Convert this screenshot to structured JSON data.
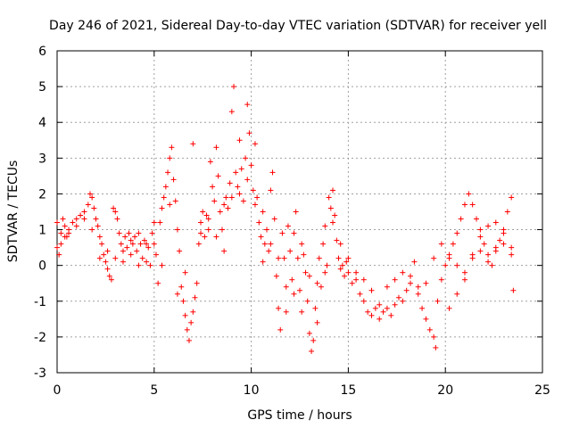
{
  "chart_data": {
    "type": "scatter",
    "title": "Day 246 of 2021, Sidereal Day-to-day VTEC variation (SDTVAR) for receiver yell",
    "xlabel": "GPS time / hours",
    "ylabel": "SDTVAR / TECUs",
    "xlim": [
      0,
      25
    ],
    "ylim": [
      -3,
      6
    ],
    "xticks": [
      "0",
      "5",
      "10",
      "15",
      "20",
      "25"
    ],
    "yticks": [
      "-3",
      "-2",
      "-1",
      "0",
      "1",
      "2",
      "3",
      "4",
      "5",
      "6"
    ],
    "grid": true,
    "marker": "+",
    "marker_color": "#ff0000",
    "series": [
      {
        "name": "SDTVAR",
        "points": [
          [
            0.0,
            1.2
          ],
          [
            0.1,
            0.3
          ],
          [
            0.2,
            0.9
          ],
          [
            0.3,
            1.3
          ],
          [
            0.4,
            1.1
          ],
          [
            0.5,
            0.8
          ],
          [
            0.6,
            1.0
          ],
          [
            0.8,
            1.2
          ],
          [
            1.0,
            1.3
          ],
          [
            1.2,
            1.4
          ],
          [
            1.4,
            1.5
          ],
          [
            1.6,
            1.7
          ],
          [
            1.7,
            2.0
          ],
          [
            1.8,
            1.9
          ],
          [
            1.9,
            1.6
          ],
          [
            2.0,
            1.3
          ],
          [
            2.1,
            1.1
          ],
          [
            2.2,
            0.8
          ],
          [
            2.3,
            0.6
          ],
          [
            2.4,
            0.3
          ],
          [
            2.5,
            0.1
          ],
          [
            2.6,
            -0.1
          ],
          [
            2.7,
            -0.3
          ],
          [
            2.8,
            -0.4
          ],
          [
            2.9,
            1.6
          ],
          [
            3.0,
            1.5
          ],
          [
            3.1,
            1.3
          ],
          [
            3.2,
            0.9
          ],
          [
            3.3,
            0.6
          ],
          [
            3.4,
            0.4
          ],
          [
            3.5,
            0.8
          ],
          [
            3.6,
            0.5
          ],
          [
            3.7,
            0.9
          ],
          [
            3.8,
            0.7
          ],
          [
            3.9,
            0.6
          ],
          [
            4.0,
            0.8
          ],
          [
            4.1,
            0.4
          ],
          [
            4.2,
            0.9
          ],
          [
            4.3,
            0.6
          ],
          [
            4.4,
            0.2
          ],
          [
            4.5,
            0.7
          ],
          [
            4.6,
            0.1
          ],
          [
            4.7,
            0.5
          ],
          [
            4.8,
            0.0
          ],
          [
            4.9,
            0.9
          ],
          [
            5.0,
            0.6
          ],
          [
            5.1,
            0.3
          ],
          [
            5.2,
            -0.5
          ],
          [
            5.3,
            1.2
          ],
          [
            5.4,
            1.6
          ],
          [
            5.5,
            1.9
          ],
          [
            5.6,
            2.2
          ],
          [
            5.7,
            2.6
          ],
          [
            5.8,
            3.0
          ],
          [
            5.9,
            3.3
          ],
          [
            6.0,
            2.4
          ],
          [
            6.1,
            1.8
          ],
          [
            6.2,
            1.0
          ],
          [
            6.3,
            0.4
          ],
          [
            6.4,
            -0.6
          ],
          [
            6.5,
            -1.0
          ],
          [
            6.6,
            -1.4
          ],
          [
            6.7,
            -1.8
          ],
          [
            6.8,
            -2.1
          ],
          [
            6.9,
            -1.6
          ],
          [
            7.0,
            3.4
          ],
          [
            7.1,
            -0.9
          ],
          [
            7.2,
            -0.5
          ],
          [
            7.3,
            0.6
          ],
          [
            7.4,
            1.2
          ],
          [
            7.5,
            1.5
          ],
          [
            7.6,
            0.8
          ],
          [
            7.7,
            1.4
          ],
          [
            7.8,
            1.0
          ],
          [
            7.9,
            2.9
          ],
          [
            8.0,
            2.2
          ],
          [
            8.1,
            1.8
          ],
          [
            8.2,
            3.3
          ],
          [
            8.3,
            2.5
          ],
          [
            8.4,
            1.5
          ],
          [
            8.5,
            1.0
          ],
          [
            8.6,
            0.4
          ],
          [
            8.7,
            1.9
          ],
          [
            8.8,
            1.6
          ],
          [
            8.9,
            2.3
          ],
          [
            9.0,
            4.3
          ],
          [
            9.1,
            5.0
          ],
          [
            9.2,
            2.6
          ],
          [
            9.3,
            2.2
          ],
          [
            9.4,
            3.5
          ],
          [
            9.5,
            2.7
          ],
          [
            9.6,
            1.8
          ],
          [
            9.7,
            3.0
          ],
          [
            9.8,
            4.5
          ],
          [
            9.9,
            3.7
          ],
          [
            10.0,
            2.8
          ],
          [
            10.1,
            2.1
          ],
          [
            10.2,
            3.4
          ],
          [
            10.3,
            1.9
          ],
          [
            10.4,
            1.2
          ],
          [
            10.5,
            0.8
          ],
          [
            10.6,
            1.5
          ],
          [
            10.7,
            0.6
          ],
          [
            10.8,
            1.0
          ],
          [
            10.9,
            0.4
          ],
          [
            11.0,
            2.1
          ],
          [
            11.1,
            2.6
          ],
          [
            11.2,
            1.3
          ],
          [
            11.3,
            -0.3
          ],
          [
            11.4,
            -1.2
          ],
          [
            11.5,
            -1.8
          ],
          [
            11.6,
            0.9
          ],
          [
            11.7,
            0.2
          ],
          [
            11.8,
            -0.6
          ],
          [
            11.9,
            1.1
          ],
          [
            12.0,
            0.4
          ],
          [
            12.1,
            -0.4
          ],
          [
            12.2,
            0.9
          ],
          [
            12.3,
            1.5
          ],
          [
            12.4,
            0.2
          ],
          [
            12.5,
            -0.7
          ],
          [
            12.6,
            -1.3
          ],
          [
            12.7,
            0.3
          ],
          [
            12.8,
            -0.2
          ],
          [
            12.9,
            -1.0
          ],
          [
            13.0,
            -1.9
          ],
          [
            13.1,
            -2.4
          ],
          [
            13.2,
            -2.1
          ],
          [
            13.3,
            -1.2
          ],
          [
            13.4,
            -0.5
          ],
          [
            13.5,
            0.2
          ],
          [
            13.6,
            -0.6
          ],
          [
            13.7,
            0.6
          ],
          [
            13.8,
            1.1
          ],
          [
            13.9,
            0.0
          ],
          [
            14.0,
            1.9
          ],
          [
            14.1,
            1.6
          ],
          [
            14.2,
            2.1
          ],
          [
            14.3,
            1.4
          ],
          [
            14.4,
            0.7
          ],
          [
            14.5,
            0.2
          ],
          [
            14.6,
            -0.1
          ],
          [
            14.7,
            0.0
          ],
          [
            14.8,
            -0.3
          ],
          [
            14.9,
            0.1
          ],
          [
            15.0,
            -0.2
          ],
          [
            15.2,
            -0.5
          ],
          [
            15.4,
            -0.4
          ],
          [
            15.6,
            -0.8
          ],
          [
            15.8,
            -1.0
          ],
          [
            16.0,
            -1.3
          ],
          [
            16.2,
            -1.4
          ],
          [
            16.4,
            -1.2
          ],
          [
            16.6,
            -1.5
          ],
          [
            16.8,
            -1.3
          ],
          [
            17.0,
            -1.2
          ],
          [
            17.2,
            -1.4
          ],
          [
            17.4,
            -1.1
          ],
          [
            17.6,
            -0.9
          ],
          [
            17.8,
            -1.0
          ],
          [
            18.0,
            -0.7
          ],
          [
            18.2,
            -0.3
          ],
          [
            18.4,
            0.1
          ],
          [
            18.6,
            -0.6
          ],
          [
            18.8,
            -1.2
          ],
          [
            19.0,
            -1.5
          ],
          [
            19.2,
            -1.8
          ],
          [
            19.4,
            -2.0
          ],
          [
            19.5,
            -2.3
          ],
          [
            19.6,
            -1.0
          ],
          [
            19.8,
            -0.4
          ],
          [
            20.0,
            0.0
          ],
          [
            20.2,
            0.3
          ],
          [
            20.4,
            0.6
          ],
          [
            20.6,
            0.9
          ],
          [
            20.8,
            1.3
          ],
          [
            21.0,
            1.7
          ],
          [
            21.2,
            2.0
          ],
          [
            21.4,
            1.7
          ],
          [
            21.6,
            1.3
          ],
          [
            21.8,
            1.0
          ],
          [
            22.0,
            0.6
          ],
          [
            22.2,
            0.3
          ],
          [
            22.4,
            0.0
          ],
          [
            22.6,
            0.4
          ],
          [
            22.8,
            0.7
          ],
          [
            23.0,
            1.0
          ],
          [
            23.2,
            1.5
          ],
          [
            23.4,
            1.9
          ],
          [
            23.5,
            -0.7
          ],
          [
            0.0,
            0.5
          ],
          [
            0.2,
            0.6
          ],
          [
            0.4,
            0.8
          ],
          [
            0.6,
            0.9
          ],
          [
            1.0,
            1.1
          ],
          [
            1.4,
            1.3
          ],
          [
            1.8,
            1.0
          ],
          [
            2.2,
            0.2
          ],
          [
            2.6,
            0.4
          ],
          [
            3.0,
            0.2
          ],
          [
            3.4,
            0.1
          ],
          [
            3.8,
            0.3
          ],
          [
            4.2,
            0.0
          ],
          [
            4.6,
            0.6
          ],
          [
            5.0,
            1.2
          ],
          [
            5.4,
            0.0
          ],
          [
            5.8,
            1.7
          ],
          [
            6.2,
            -0.8
          ],
          [
            6.6,
            -0.2
          ],
          [
            7.0,
            -1.3
          ],
          [
            7.4,
            0.9
          ],
          [
            7.8,
            1.3
          ],
          [
            8.2,
            0.8
          ],
          [
            8.6,
            1.7
          ],
          [
            9.0,
            1.9
          ],
          [
            9.4,
            2.0
          ],
          [
            9.8,
            2.4
          ],
          [
            10.2,
            1.7
          ],
          [
            10.6,
            0.1
          ],
          [
            11.0,
            0.6
          ],
          [
            11.4,
            0.2
          ],
          [
            11.8,
            -1.3
          ],
          [
            12.2,
            -0.8
          ],
          [
            12.6,
            0.6
          ],
          [
            13.0,
            -0.3
          ],
          [
            13.4,
            -1.6
          ],
          [
            13.8,
            -0.2
          ],
          [
            14.2,
            1.2
          ],
          [
            14.6,
            0.6
          ],
          [
            15.0,
            0.2
          ],
          [
            15.4,
            -0.2
          ],
          [
            15.8,
            -0.4
          ],
          [
            16.2,
            -0.7
          ],
          [
            16.6,
            -1.1
          ],
          [
            17.0,
            -0.6
          ],
          [
            17.4,
            -0.4
          ],
          [
            17.8,
            -0.2
          ],
          [
            18.2,
            -0.5
          ],
          [
            18.6,
            -0.8
          ],
          [
            19.0,
            -0.5
          ],
          [
            19.4,
            0.2
          ],
          [
            19.8,
            0.6
          ],
          [
            20.2,
            0.2
          ],
          [
            20.6,
            0.0
          ],
          [
            21.0,
            -0.2
          ],
          [
            21.4,
            0.2
          ],
          [
            21.8,
            0.4
          ],
          [
            22.2,
            0.1
          ],
          [
            22.6,
            0.5
          ],
          [
            23.0,
            0.6
          ],
          [
            23.4,
            0.5
          ],
          [
            20.2,
            -1.2
          ],
          [
            20.6,
            -0.8
          ],
          [
            21.0,
            -0.4
          ],
          [
            21.4,
            0.3
          ],
          [
            21.8,
            0.8
          ],
          [
            22.2,
            1.1
          ],
          [
            22.6,
            1.2
          ],
          [
            23.0,
            0.9
          ],
          [
            23.4,
            0.3
          ]
        ]
      }
    ]
  }
}
